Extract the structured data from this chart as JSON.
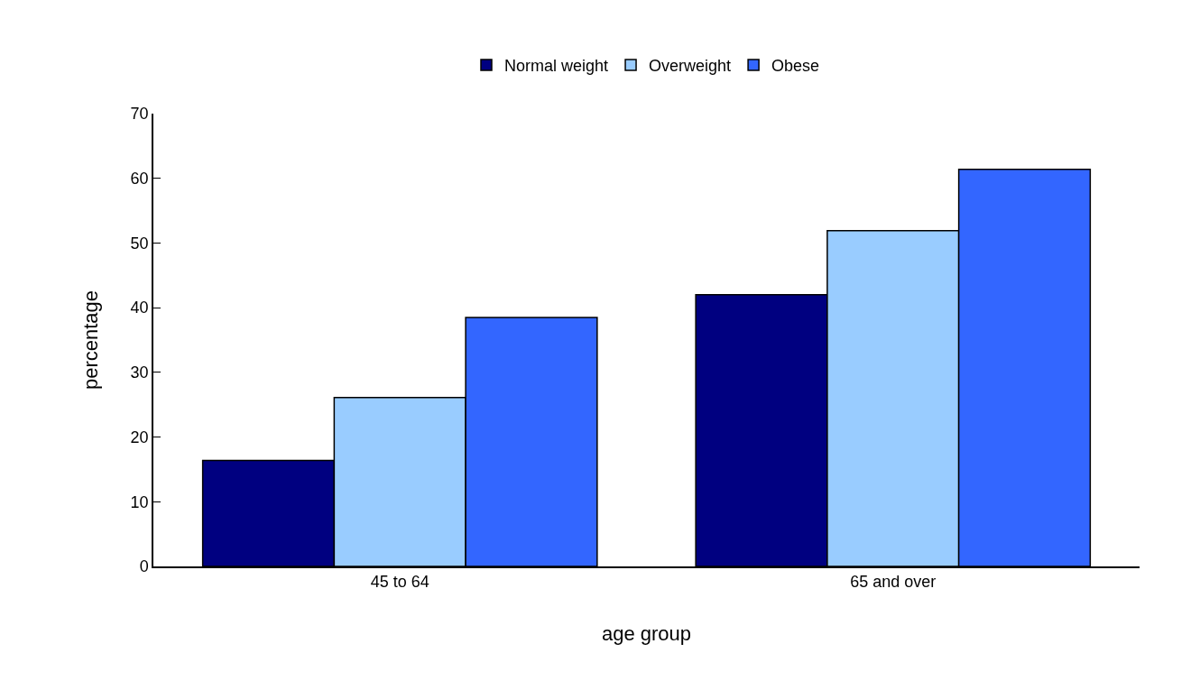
{
  "chart_data": {
    "type": "bar",
    "xlabel": "age group",
    "ylabel": "percentage",
    "categories": [
      "45 to 64",
      "65 and over"
    ],
    "series": [
      {
        "name": "Normal weight",
        "color": "#000080",
        "values": [
          16.4,
          42.0
        ]
      },
      {
        "name": "Overweight",
        "color": "#99ccff",
        "values": [
          26.1,
          51.9
        ]
      },
      {
        "name": "Obese",
        "color": "#3366ff",
        "values": [
          38.5,
          61.4
        ]
      }
    ],
    "ylim": [
      0,
      70
    ],
    "yticks": [
      0,
      10,
      20,
      30,
      40,
      50,
      60,
      70
    ],
    "legend": "top"
  }
}
